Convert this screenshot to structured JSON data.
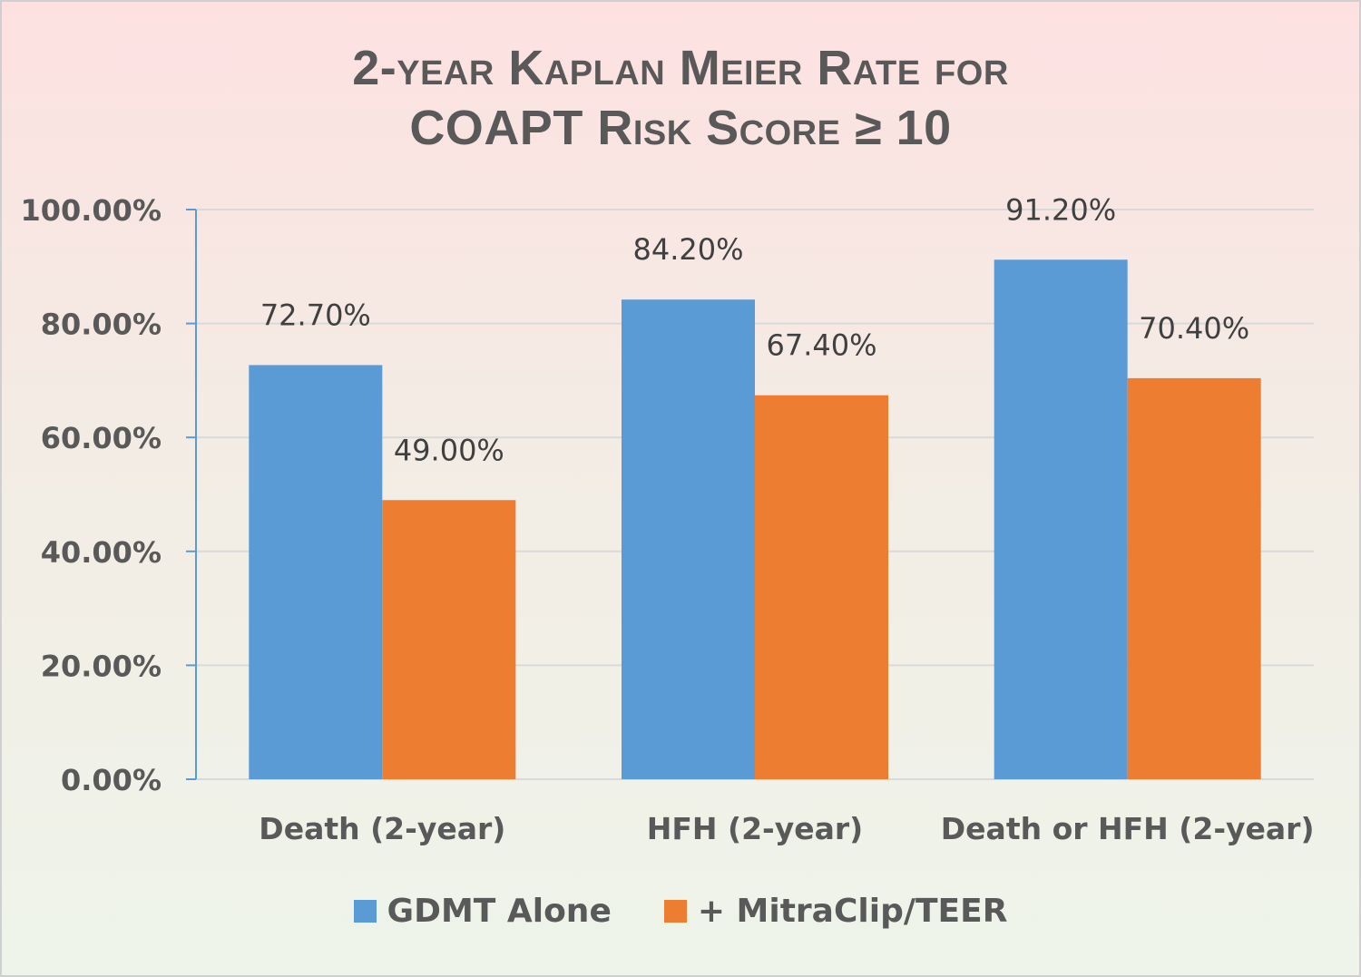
{
  "chart_data": {
    "type": "bar",
    "title_lines": [
      "2-year Kaplan Meier Rate for",
      "COAPT Risk Score ≥ 10"
    ],
    "categories": [
      "Death (2-year)",
      "HFH (2-year)",
      "Death or HFH (2-year)"
    ],
    "series": [
      {
        "name": "GDMT Alone",
        "color": "#5b9bd5",
        "values": [
          72.7,
          84.2,
          91.2
        ],
        "labels": [
          "72.70%",
          "84.20%",
          "91.20%"
        ]
      },
      {
        "name": "+ MitraClip/TEER",
        "color": "#ed7d31",
        "values": [
          49.0,
          67.4,
          70.4
        ],
        "labels": [
          "49.00%",
          "67.40%",
          "70.40%"
        ]
      }
    ],
    "ylim": [
      0,
      100
    ],
    "yticks": [
      0,
      20,
      40,
      60,
      80,
      100
    ],
    "ytick_labels": [
      "0.00%",
      "20.00%",
      "40.00%",
      "60.00%",
      "80.00%",
      "100.00%"
    ],
    "xlabel": "",
    "ylabel": "",
    "grid": true,
    "legend_position": "bottom",
    "colors": {
      "axis": "#5b9bd5",
      "grid": "#d9d9d9",
      "text": "#595959",
      "value_label": "#404040"
    }
  }
}
